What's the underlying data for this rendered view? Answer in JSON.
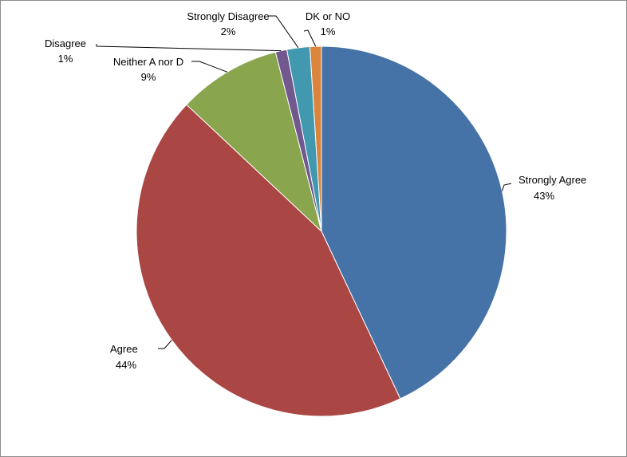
{
  "chart_data": {
    "type": "pie",
    "title": "",
    "slices": [
      {
        "label": "Strongly Agree",
        "value": 43,
        "pct_text": "43%",
        "color": "#4572A7"
      },
      {
        "label": "Agree",
        "value": 44,
        "pct_text": "44%",
        "color": "#AA4643"
      },
      {
        "label": "Neither A nor D",
        "value": 9,
        "pct_text": "9%",
        "color": "#89A54E"
      },
      {
        "label": "Disagree",
        "value": 1,
        "pct_text": "1%",
        "color": "#71588F"
      },
      {
        "label": "Strongly Disagree",
        "value": 2,
        "pct_text": "2%",
        "color": "#4198AF"
      },
      {
        "label": "DK or NO",
        "value": 1,
        "pct_text": "1%",
        "color": "#DB843D"
      }
    ]
  }
}
